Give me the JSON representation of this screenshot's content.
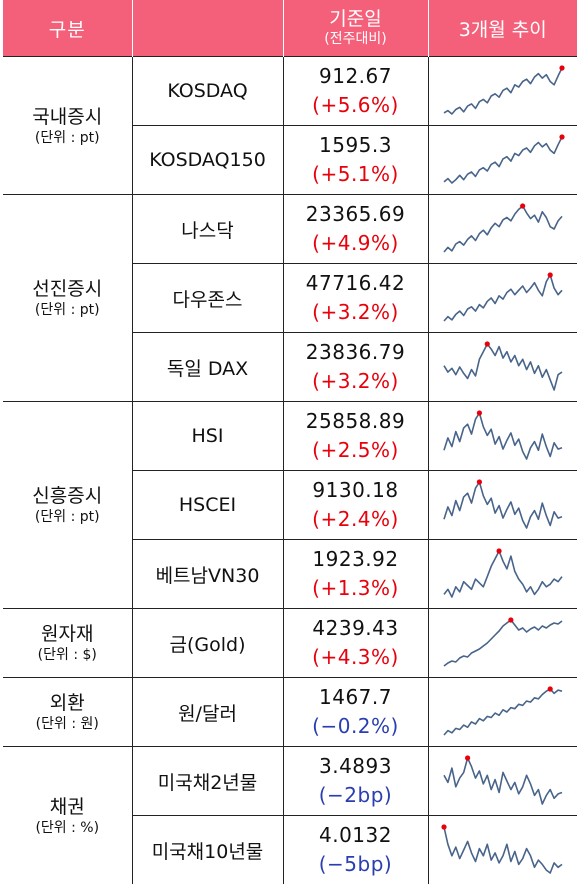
{
  "header": {
    "col1": "구분",
    "col2_main": "기준일",
    "col2_sub": "(전주대비)",
    "col3": "3개월 추이"
  },
  "colors": {
    "header_bg": "#f4607a",
    "up": "#e8000b",
    "down": "#2a3eb1",
    "line": "#48648a"
  },
  "groups": [
    {
      "title": "국내증시",
      "unit": "(단위 : pt)"
    },
    {
      "title": "선진증시",
      "unit": "(단위 : pt)"
    },
    {
      "title": "신흥증시",
      "unit": "(단위 : pt)"
    },
    {
      "title": "원자재",
      "unit": "(단위 : $)"
    },
    {
      "title": "외환",
      "unit": "(단위 : 원)"
    },
    {
      "title": "채권",
      "unit": "(단위 : %)"
    }
  ],
  "rows": [
    {
      "name": "KOSDAQ",
      "value": "912.67",
      "change": "(+5.6%)",
      "direction": "up",
      "trend": [
        30,
        32,
        29,
        33,
        35,
        31,
        36,
        38,
        34,
        40,
        42,
        39,
        45,
        47,
        44,
        50,
        52,
        48,
        55,
        53,
        58,
        60,
        56,
        62,
        65,
        61,
        64,
        58,
        55,
        63,
        70
      ]
    },
    {
      "name": "KOSDAQ150",
      "value": "1595.3",
      "change": "(+5.1%)",
      "direction": "up",
      "trend": [
        28,
        31,
        27,
        30,
        34,
        30,
        35,
        37,
        33,
        39,
        41,
        38,
        44,
        46,
        42,
        49,
        51,
        47,
        54,
        52,
        57,
        59,
        55,
        61,
        64,
        60,
        63,
        57,
        54,
        62,
        69
      ]
    },
    {
      "name": "나스닥",
      "value": "23365.69",
      "change": "(+4.9%)",
      "direction": "up",
      "trend": [
        30,
        34,
        31,
        37,
        39,
        36,
        41,
        44,
        40,
        46,
        49,
        45,
        51,
        55,
        52,
        58,
        60,
        57,
        63,
        67,
        70,
        64,
        59,
        62,
        56,
        65,
        60,
        52,
        50,
        57,
        61
      ]
    },
    {
      "name": "다우존스",
      "value": "47716.42",
      "change": "(+3.2%)",
      "direction": "up",
      "trend": [
        32,
        36,
        33,
        38,
        41,
        37,
        43,
        45,
        41,
        47,
        44,
        50,
        53,
        48,
        55,
        52,
        58,
        61,
        56,
        60,
        64,
        58,
        62,
        67,
        60,
        55,
        68,
        74,
        62,
        56,
        60
      ]
    },
    {
      "name": "독일 DAX",
      "value": "23836.79",
      "change": "(+3.2%)",
      "direction": "up",
      "trend": [
        55,
        50,
        53,
        48,
        54,
        49,
        45,
        52,
        47,
        60,
        66,
        72,
        68,
        63,
        70,
        61,
        66,
        58,
        63,
        55,
        60,
        52,
        58,
        49,
        55,
        46,
        52,
        44,
        36,
        48,
        50
      ]
    },
    {
      "name": "HSI",
      "value": "25858.89",
      "change": "(+2.5%)",
      "direction": "up",
      "trend": [
        45,
        55,
        48,
        60,
        52,
        63,
        66,
        58,
        70,
        75,
        64,
        57,
        62,
        50,
        56,
        46,
        53,
        59,
        49,
        54,
        44,
        38,
        47,
        52,
        45,
        58,
        48,
        40,
        51,
        46,
        47
      ]
    },
    {
      "name": "HSCEI",
      "value": "9130.18",
      "change": "(+2.4%)",
      "direction": "up",
      "trend": [
        44,
        54,
        47,
        59,
        51,
        62,
        65,
        57,
        69,
        74,
        63,
        56,
        61,
        49,
        55,
        45,
        52,
        58,
        48,
        53,
        43,
        37,
        46,
        51,
        44,
        57,
        47,
        39,
        50,
        45,
        46
      ]
    },
    {
      "name": "베트남VN30",
      "value": "1923.92",
      "change": "(+1.3%)",
      "direction": "up",
      "trend": [
        38,
        42,
        36,
        44,
        40,
        48,
        45,
        42,
        50,
        47,
        44,
        52,
        60,
        66,
        72,
        64,
        58,
        68,
        56,
        50,
        46,
        40,
        44,
        38,
        42,
        48,
        44,
        46,
        50,
        48,
        52
      ]
    },
    {
      "name": "금(Gold)",
      "value": "4239.43",
      "change": "(+4.3%)",
      "direction": "up",
      "trend": [
        30,
        33,
        35,
        34,
        38,
        40,
        39,
        43,
        45,
        47,
        50,
        53,
        57,
        61,
        65,
        70,
        73,
        76,
        71,
        66,
        68,
        64,
        67,
        69,
        66,
        70,
        68,
        71,
        73,
        72,
        75
      ]
    },
    {
      "name": "원/달러",
      "value": "1467.7",
      "change": "(−0.2%)",
      "direction": "down",
      "trend": [
        30,
        34,
        32,
        36,
        35,
        39,
        37,
        42,
        40,
        45,
        43,
        47,
        46,
        50,
        48,
        53,
        51,
        55,
        54,
        58,
        57,
        61,
        60,
        64,
        63,
        67,
        70,
        72,
        68,
        71,
        70
      ]
    },
    {
      "name": "미국채2년물",
      "value": "3.4893",
      "change": "(−2bp)",
      "direction": "down",
      "trend": [
        60,
        55,
        65,
        52,
        58,
        62,
        72,
        66,
        58,
        63,
        54,
        60,
        50,
        57,
        48,
        62,
        56,
        50,
        55,
        47,
        52,
        60,
        54,
        46,
        50,
        40,
        46,
        50,
        44,
        47,
        48
      ]
    },
    {
      "name": "미국채10년물",
      "value": "4.0132",
      "change": "(−5bp)",
      "direction": "down",
      "trend": [
        70,
        58,
        50,
        56,
        48,
        54,
        60,
        52,
        46,
        55,
        50,
        58,
        47,
        52,
        45,
        50,
        58,
        46,
        53,
        44,
        48,
        55,
        50,
        42,
        47,
        44,
        40,
        38,
        45,
        42,
        44
      ]
    }
  ]
}
